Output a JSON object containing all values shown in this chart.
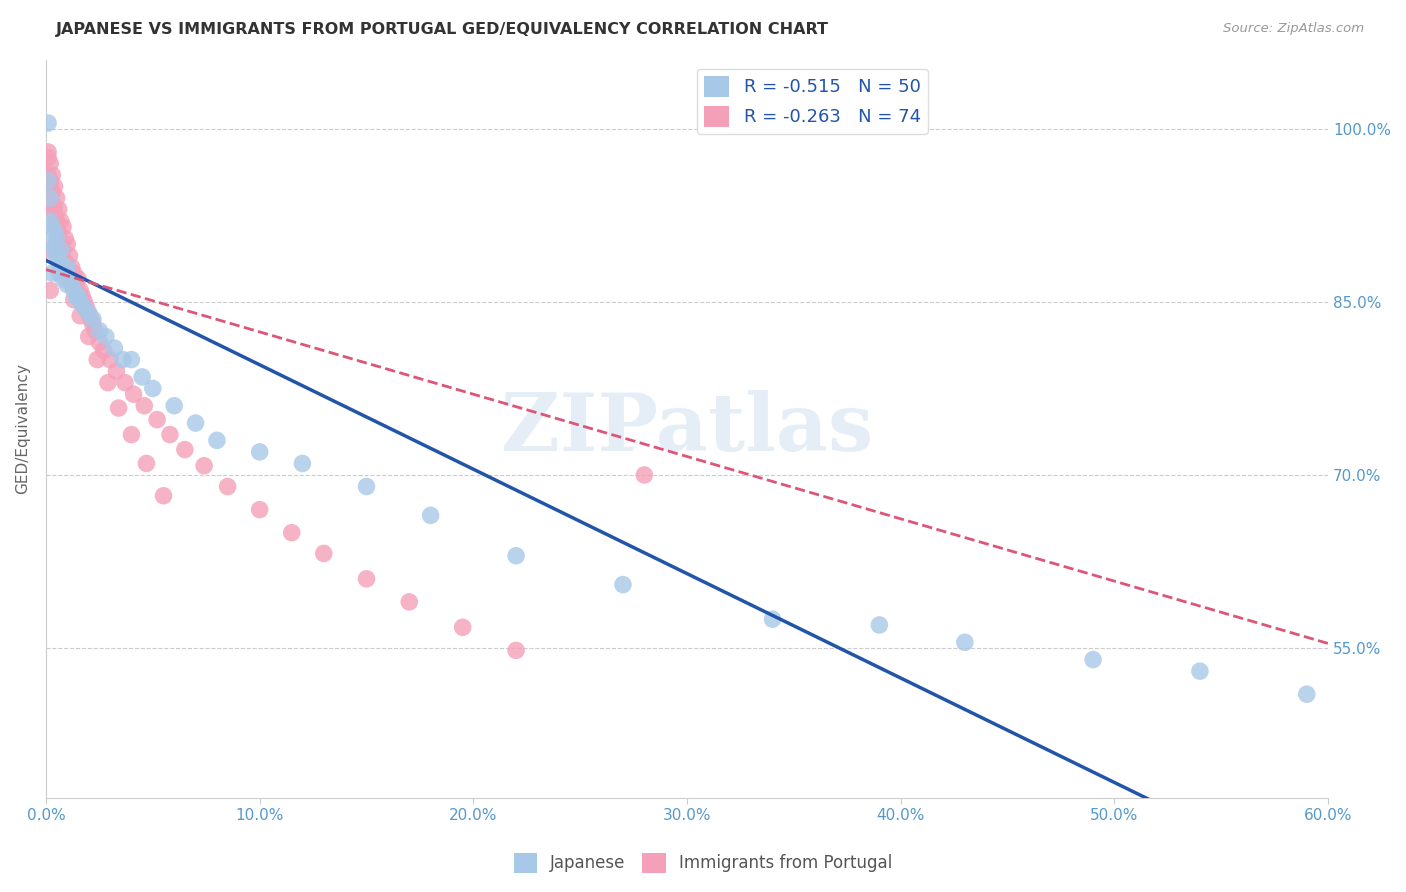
{
  "title": "JAPANESE VS IMMIGRANTS FROM PORTUGAL GED/EQUIVALENCY CORRELATION CHART",
  "source": "Source: ZipAtlas.com",
  "ylabel": "GED/Equivalency",
  "ytick_labels": [
    "100.0%",
    "85.0%",
    "70.0%",
    "55.0%"
  ],
  "ytick_values": [
    1.0,
    0.85,
    0.7,
    0.55
  ],
  "xlim": [
    0.0,
    0.6
  ],
  "ylim": [
    0.42,
    1.06
  ],
  "legend_line1": "R = -0.515   N = 50",
  "legend_line2": "R = -0.263   N = 74",
  "blue_color": "#a8c8e8",
  "pink_color": "#f4a0b8",
  "blue_line_color": "#2255aa",
  "pink_line_color": "#dd5577",
  "watermark": "ZIPatlas",
  "japanese_x": [
    0.001,
    0.002,
    0.002,
    0.003,
    0.003,
    0.004,
    0.004,
    0.005,
    0.005,
    0.006,
    0.006,
    0.007,
    0.008,
    0.008,
    0.009,
    0.01,
    0.01,
    0.011,
    0.012,
    0.013,
    0.014,
    0.015,
    0.016,
    0.018,
    0.02,
    0.022,
    0.025,
    0.028,
    0.032,
    0.036,
    0.04,
    0.045,
    0.05,
    0.06,
    0.07,
    0.08,
    0.1,
    0.12,
    0.15,
    0.18,
    0.22,
    0.27,
    0.34,
    0.39,
    0.43,
    0.49,
    0.54,
    0.001,
    0.003,
    0.59
  ],
  "japanese_y": [
    0.955,
    0.92,
    0.94,
    0.9,
    0.915,
    0.895,
    0.91,
    0.89,
    0.905,
    0.885,
    0.875,
    0.895,
    0.88,
    0.87,
    0.875,
    0.865,
    0.88,
    0.87,
    0.865,
    0.86,
    0.855,
    0.855,
    0.85,
    0.845,
    0.84,
    0.835,
    0.825,
    0.82,
    0.81,
    0.8,
    0.8,
    0.785,
    0.775,
    0.76,
    0.745,
    0.73,
    0.72,
    0.71,
    0.69,
    0.665,
    0.63,
    0.605,
    0.575,
    0.57,
    0.555,
    0.54,
    0.53,
    1.005,
    0.875,
    0.51
  ],
  "portuguese_x": [
    0.001,
    0.001,
    0.002,
    0.002,
    0.003,
    0.003,
    0.003,
    0.004,
    0.004,
    0.005,
    0.005,
    0.006,
    0.006,
    0.007,
    0.007,
    0.008,
    0.008,
    0.009,
    0.009,
    0.01,
    0.01,
    0.011,
    0.012,
    0.012,
    0.013,
    0.014,
    0.015,
    0.016,
    0.017,
    0.018,
    0.019,
    0.02,
    0.021,
    0.022,
    0.023,
    0.025,
    0.027,
    0.03,
    0.033,
    0.037,
    0.041,
    0.046,
    0.052,
    0.058,
    0.065,
    0.074,
    0.085,
    0.1,
    0.115,
    0.13,
    0.15,
    0.17,
    0.195,
    0.22,
    0.001,
    0.002,
    0.002,
    0.004,
    0.005,
    0.006,
    0.008,
    0.01,
    0.013,
    0.016,
    0.02,
    0.024,
    0.029,
    0.034,
    0.04,
    0.047,
    0.055,
    0.001,
    0.002,
    0.28
  ],
  "portuguese_y": [
    0.98,
    0.96,
    0.97,
    0.95,
    0.96,
    0.945,
    0.935,
    0.95,
    0.93,
    0.94,
    0.92,
    0.93,
    0.91,
    0.92,
    0.9,
    0.915,
    0.895,
    0.905,
    0.885,
    0.9,
    0.88,
    0.89,
    0.88,
    0.87,
    0.875,
    0.865,
    0.87,
    0.86,
    0.855,
    0.85,
    0.845,
    0.84,
    0.835,
    0.83,
    0.825,
    0.815,
    0.808,
    0.8,
    0.79,
    0.78,
    0.77,
    0.76,
    0.748,
    0.735,
    0.722,
    0.708,
    0.69,
    0.67,
    0.65,
    0.632,
    0.61,
    0.59,
    0.568,
    0.548,
    0.975,
    0.955,
    0.935,
    0.925,
    0.915,
    0.905,
    0.885,
    0.87,
    0.852,
    0.838,
    0.82,
    0.8,
    0.78,
    0.758,
    0.735,
    0.71,
    0.682,
    0.895,
    0.86,
    0.7
  ],
  "blue_regression": [
    -0.905,
    0.886
  ],
  "pink_regression": [
    -0.54,
    0.878
  ]
}
